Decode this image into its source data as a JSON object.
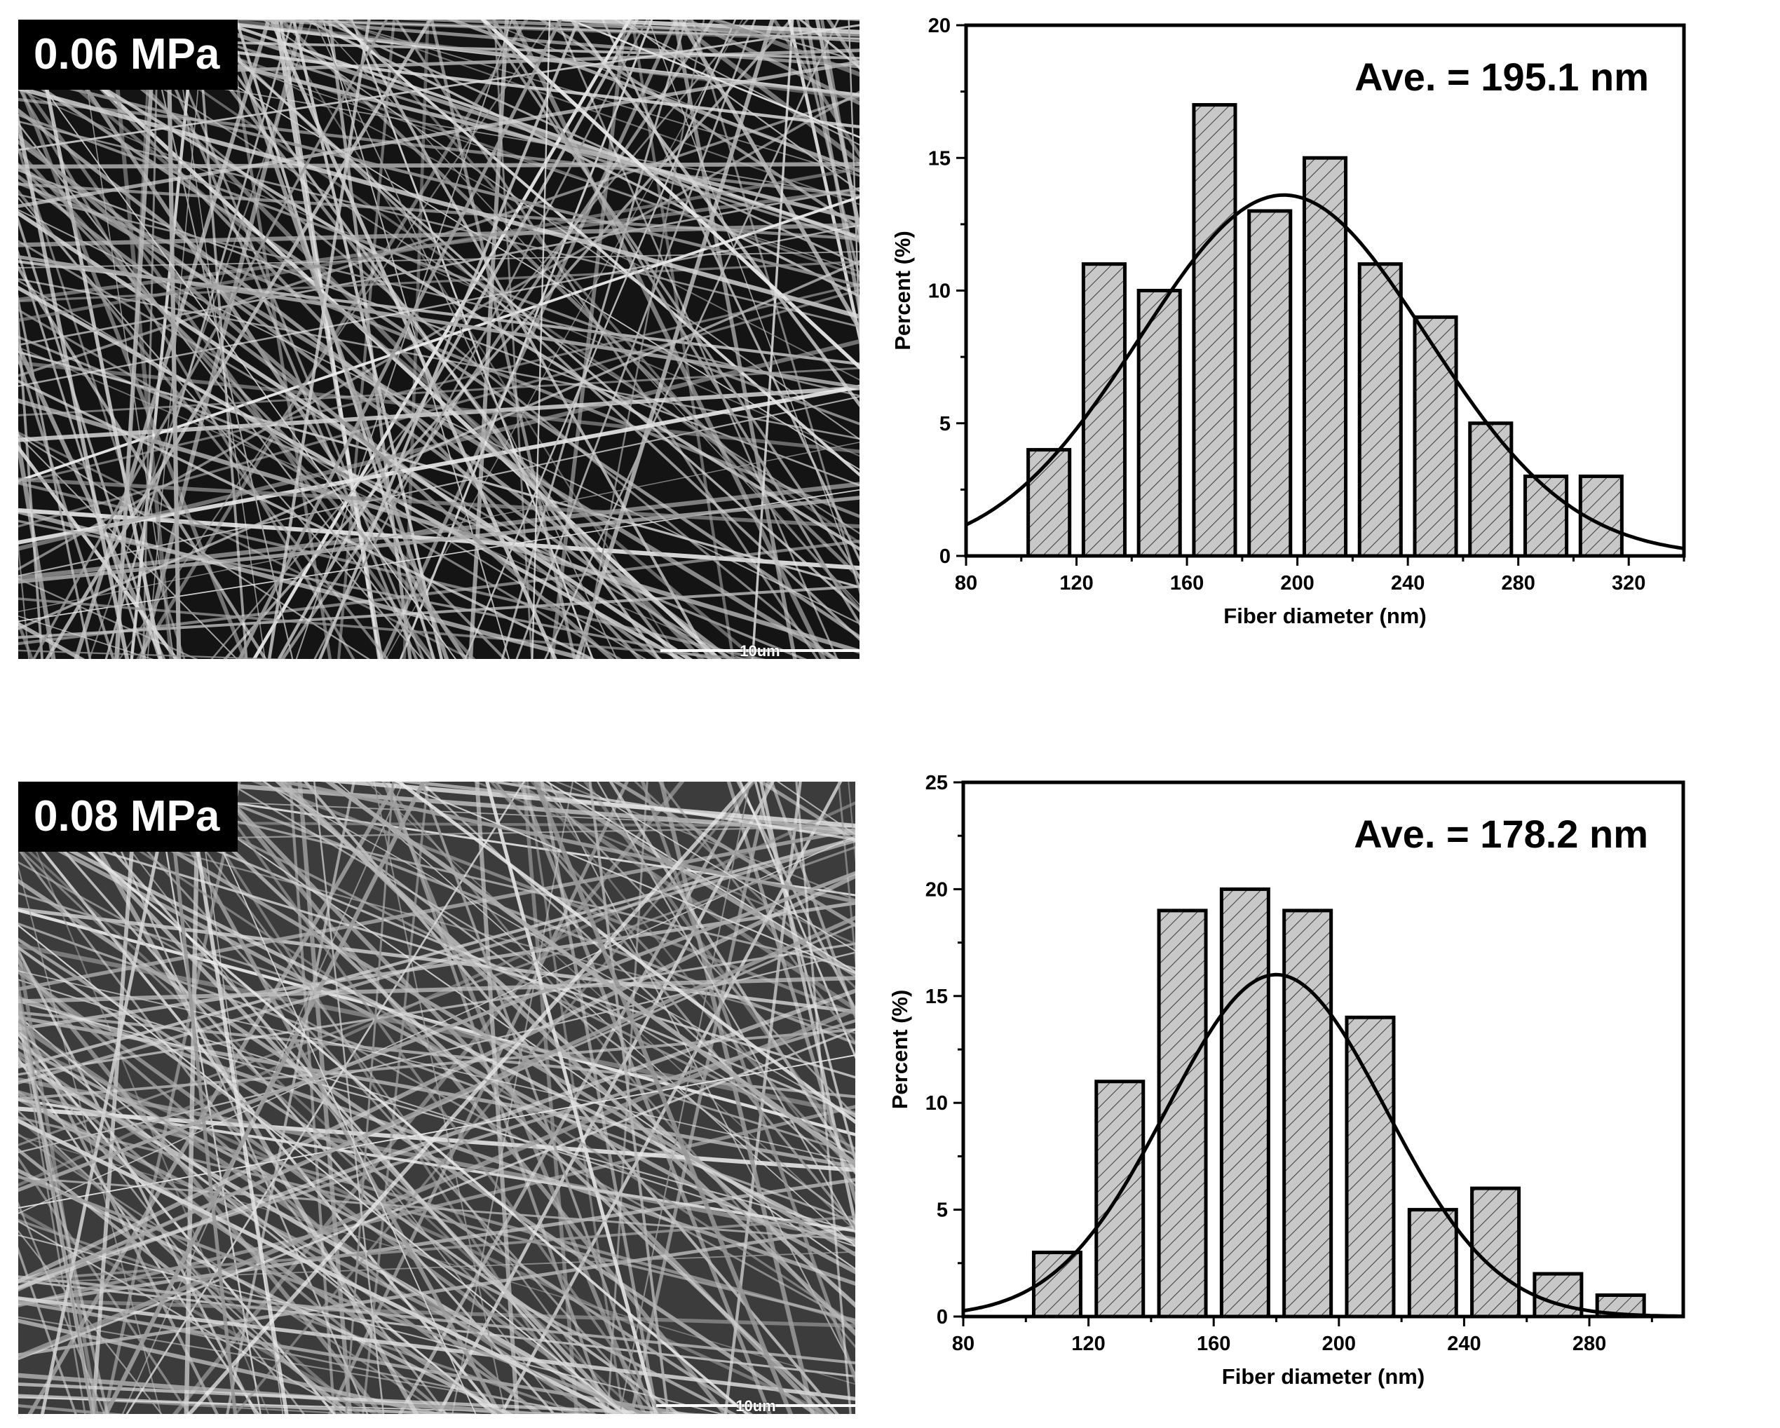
{
  "panels": [
    {
      "label": "0.06 MPa",
      "scale_label": "10um"
    },
    {
      "label": "0.08 MPa",
      "scale_label": "10um"
    }
  ],
  "chart_data": [
    {
      "type": "bar",
      "title": "",
      "annotation": "Ave. = 195.1 nm",
      "xlabel": "Fiber diameter (nm)",
      "ylabel": "Percent (%)",
      "xlim": [
        80,
        340
      ],
      "ylim": [
        0,
        20
      ],
      "xticks": [
        80,
        120,
        160,
        200,
        240,
        280,
        320
      ],
      "yticks": [
        0,
        5,
        10,
        15,
        20
      ],
      "bin_width": 15,
      "bar_centers": [
        110,
        130,
        150,
        170,
        190,
        210,
        230,
        250,
        270,
        290,
        310
      ],
      "values": [
        4,
        11,
        10,
        17,
        13,
        15,
        11,
        9,
        5,
        3,
        3
      ],
      "fit": {
        "type": "gaussian",
        "mean": 195.1,
        "peak": 13.6,
        "sigma": 52
      },
      "colors": {
        "bar_fill": "#c8c8c8",
        "hatch": "#3a3a3a",
        "line": "#000000"
      }
    },
    {
      "type": "bar",
      "title": "",
      "annotation": "Ave. = 178.2 nm",
      "xlabel": "Fiber diameter (nm)",
      "ylabel": "Percent (%)",
      "xlim": [
        80,
        310
      ],
      "ylim": [
        0,
        25
      ],
      "xticks": [
        80,
        120,
        160,
        200,
        240,
        280
      ],
      "yticks": [
        0,
        5,
        10,
        15,
        20,
        25
      ],
      "bin_width": 15,
      "bar_centers": [
        110,
        130,
        150,
        170,
        190,
        210,
        230,
        250,
        270,
        290
      ],
      "values": [
        3,
        11,
        19,
        20,
        19,
        14,
        5,
        6,
        2,
        1
      ],
      "fit": {
        "type": "gaussian",
        "mean": 180,
        "peak": 16,
        "sigma": 35
      },
      "colors": {
        "bar_fill": "#c8c8c8",
        "hatch": "#3a3a3a",
        "line": "#000000"
      }
    }
  ]
}
